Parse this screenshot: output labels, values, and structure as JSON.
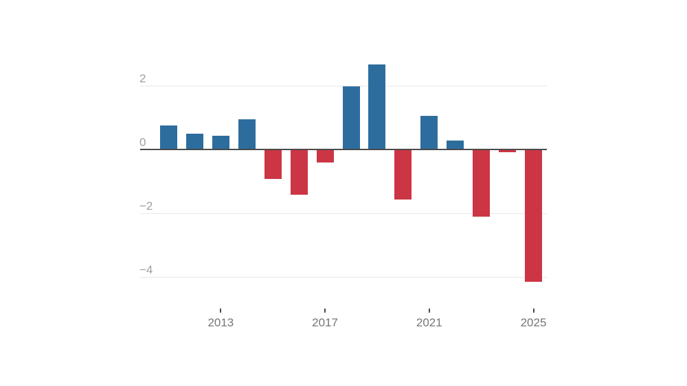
{
  "chart_data": {
    "type": "bar",
    "title": "",
    "xlabel": "",
    "ylabel": "",
    "categories": [
      2011,
      2012,
      2013,
      2014,
      2015,
      2016,
      2017,
      2018,
      2019,
      2020,
      2021,
      2022,
      2023,
      2024,
      2025
    ],
    "values": [
      0.75,
      0.5,
      0.42,
      0.95,
      -0.92,
      -1.43,
      -0.4,
      1.98,
      2.66,
      -1.56,
      1.05,
      0.28,
      -2.1,
      -0.08,
      -4.15
    ],
    "ylim": [
      -4.7,
      3.0
    ],
    "grid": true,
    "legend_position": "none",
    "colors": {
      "positive_bar": "#2d6d9e",
      "negative_bar": "#cc3544",
      "zero_axis": "#4a4a4a",
      "gridline": "#e8e8e8",
      "y_tick_text": "#9e9e9e",
      "x_tick_text": "#757575",
      "background": "#ffffff"
    },
    "y_axis": {
      "ticks": [
        {
          "value": 2,
          "label": "2"
        },
        {
          "value": 0,
          "label": "0"
        },
        {
          "value": -2,
          "label": "−2"
        },
        {
          "value": -4,
          "label": "−4"
        }
      ]
    },
    "x_axis": {
      "ticks": [
        {
          "year": 2013,
          "label": "2013"
        },
        {
          "year": 2017,
          "label": "2017"
        },
        {
          "year": 2021,
          "label": "2021"
        },
        {
          "year": 2025,
          "label": "2025"
        }
      ]
    }
  }
}
